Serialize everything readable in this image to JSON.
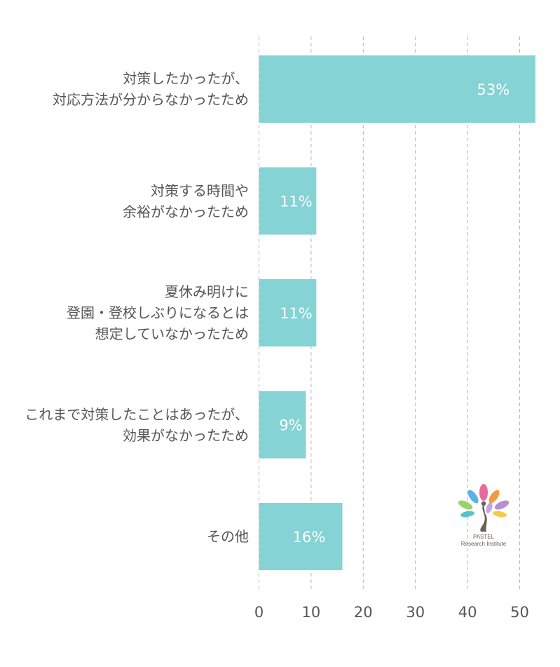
{
  "chart_data": {
    "type": "bar",
    "orientation": "horizontal",
    "categories": [
      [
        "対策したかったが、",
        "対応方法が分からなかったため"
      ],
      [
        "対策する時間や",
        "余裕がなかったため"
      ],
      [
        "夏休み明けに",
        "登園・登校しぶりになるとは",
        "想定していなかったため"
      ],
      [
        "これまで対策したことはあったが、",
        "効果がなかったため"
      ],
      [
        "その他"
      ]
    ],
    "values": [
      53,
      11,
      11,
      9,
      16
    ],
    "data_labels": [
      "53%",
      "11%",
      "11%",
      "9%",
      "16%"
    ],
    "xlim": [
      0,
      53
    ],
    "x_ticks": [
      0,
      10,
      20,
      30,
      40,
      50
    ],
    "x_tick_labels": [
      "0",
      "10",
      "20",
      "30",
      "40",
      "50"
    ],
    "grid": "vertical-dashed",
    "bar_color": "#85d3d4",
    "label_color": "#ffffff",
    "gridline_color": "#b5b5b5"
  },
  "logo": {
    "line1": "PASTEL",
    "line2": "Research Institute",
    "colors": [
      "#e86a9a",
      "#f39a3c",
      "#5ab3e6",
      "#b58fd6",
      "#9bd36a",
      "#f6c94a",
      "#55c3c9",
      "#c9a2e3"
    ]
  }
}
